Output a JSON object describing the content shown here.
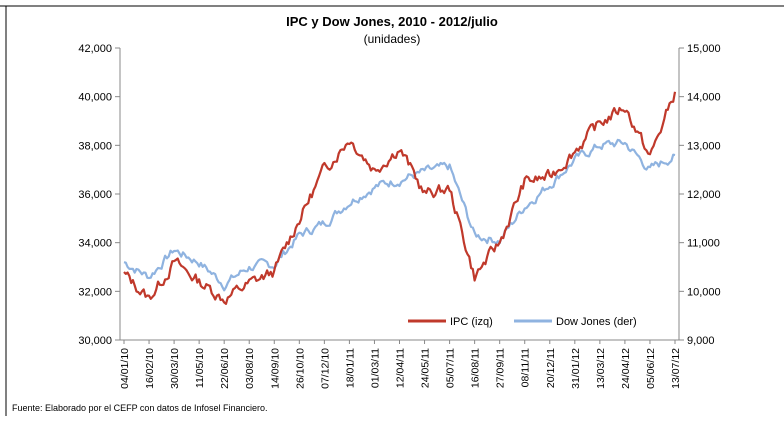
{
  "chart_data": {
    "type": "line",
    "title": "IPC y Dow Jones, 2010 - 2012/julio",
    "subtitle": "(unidades)",
    "source": "Fuente:  Elaborado por el CEFP con datos de Infosel Financiero.",
    "colors": {
      "ipc": "#c0392b",
      "dow": "#8fb3e0"
    },
    "y_left": {
      "ylim": [
        30000,
        42000
      ],
      "ticks": [
        "30,000",
        "32,000",
        "34,000",
        "36,000",
        "38,000",
        "40,000",
        "42,000"
      ]
    },
    "y_right": {
      "ylim": [
        9000,
        15000
      ],
      "ticks": [
        "9,000",
        "10,000",
        "11,000",
        "12,000",
        "13,000",
        "14,000",
        "15,000"
      ]
    },
    "x_tick_labels": [
      "04/01/10",
      "16/02/10",
      "30/03/10",
      "11/05/10",
      "22/06/10",
      "03/08/10",
      "14/09/10",
      "26/10/10",
      "07/12/10",
      "18/01/11",
      "01/03/11",
      "12/04/11",
      "24/05/11",
      "05/07/11",
      "16/08/11",
      "27/09/11",
      "08/11/11",
      "20/12/11",
      "31/01/12",
      "13/03/12",
      "24/04/12",
      "05/06/12",
      "13/07/12"
    ],
    "legend": {
      "position": "bottom-right",
      "entries": [
        "IPC (izq)",
        "Dow Jones (der)"
      ]
    },
    "series": [
      {
        "name": "IPC (izq)",
        "axis": "left",
        "x": [
          "04/01/10",
          "16/02/10",
          "30/03/10",
          "11/05/10",
          "22/06/10",
          "03/08/10",
          "14/09/10",
          "26/10/10",
          "07/12/10",
          "18/01/11",
          "01/03/11",
          "12/04/11",
          "24/05/11",
          "05/07/11",
          "16/08/11",
          "27/09/11",
          "08/11/11",
          "20/12/11",
          "31/01/12",
          "13/03/12",
          "24/04/12",
          "05/06/12",
          "13/07/12"
        ],
        "values": [
          32700,
          31700,
          33200,
          32400,
          31700,
          32300,
          32800,
          35000,
          37000,
          38300,
          37000,
          37900,
          36000,
          36200,
          32600,
          34000,
          36500,
          36700,
          37800,
          38900,
          39600,
          37500,
          40200
        ]
      },
      {
        "name": "Dow Jones (der)",
        "axis": "right",
        "x": [
          "04/01/10",
          "16/02/10",
          "30/03/10",
          "11/05/10",
          "22/06/10",
          "03/08/10",
          "14/09/10",
          "26/10/10",
          "07/12/10",
          "18/01/11",
          "01/03/11",
          "12/04/11",
          "24/05/11",
          "05/07/11",
          "16/08/11",
          "27/09/11",
          "08/11/11",
          "20/12/11",
          "31/01/12",
          "13/03/12",
          "24/04/12",
          "05/06/12",
          "13/07/12"
        ],
        "values": [
          10600,
          10300,
          10850,
          10600,
          10150,
          10500,
          10550,
          11150,
          11400,
          11850,
          12150,
          12300,
          12450,
          12550,
          11150,
          11050,
          11750,
          12200,
          12700,
          13000,
          13050,
          12500,
          12800
        ]
      }
    ]
  }
}
